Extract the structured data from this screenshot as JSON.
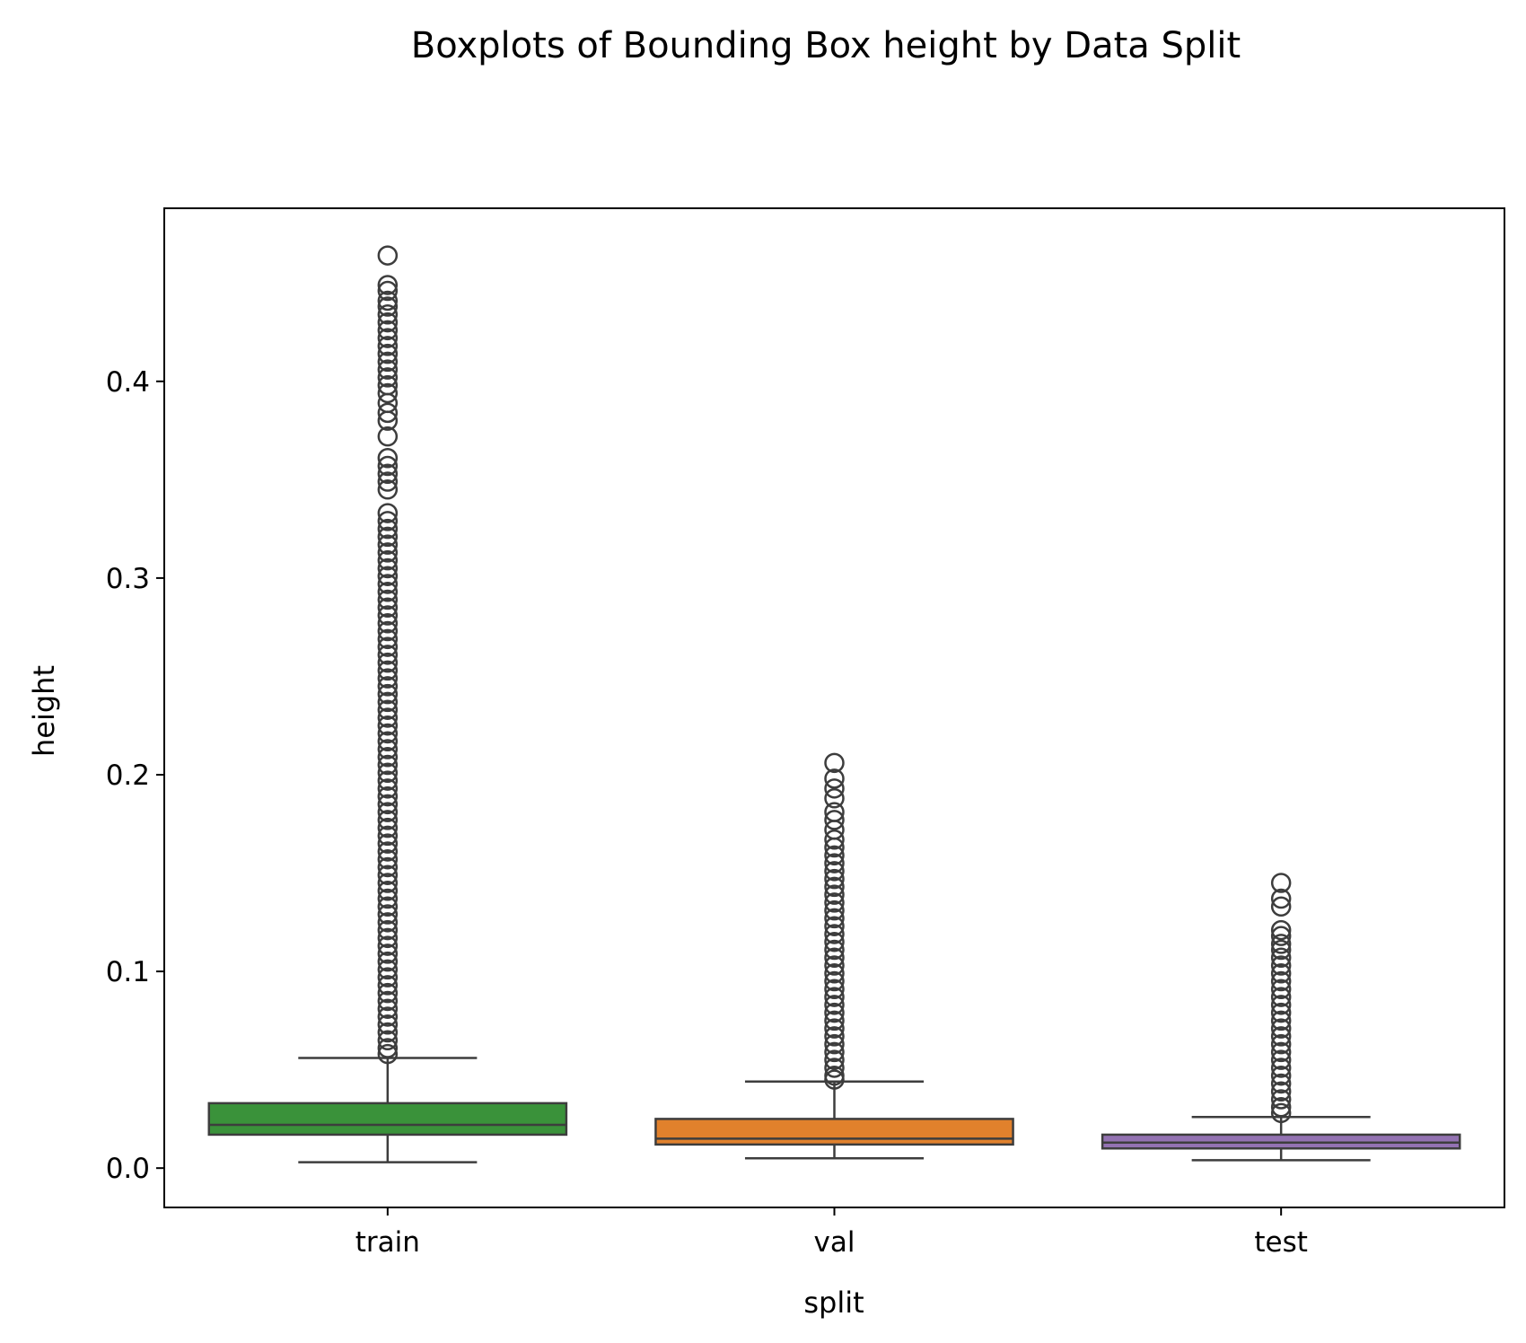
{
  "chart_data": {
    "type": "boxplot",
    "title": "Boxplots of Bounding Box height by Data Split",
    "xlabel": "split",
    "ylabel": "height",
    "categories": [
      "train",
      "val",
      "test"
    ],
    "ylim": [
      -0.02,
      0.488
    ],
    "yticks": [
      0.0,
      0.1,
      0.2,
      0.3,
      0.4
    ],
    "ytick_labels": [
      "0.0",
      "0.1",
      "0.2",
      "0.3",
      "0.4"
    ],
    "grid": false,
    "boxes": [
      {
        "name": "train",
        "color": "#3a923a",
        "whisker_low": 0.003,
        "q1": 0.017,
        "median": 0.022,
        "q3": 0.033,
        "whisker_high": 0.056,
        "outliers": [
          0.464,
          0.449,
          0.446,
          0.441,
          0.438,
          0.434,
          0.43,
          0.426,
          0.422,
          0.418,
          0.414,
          0.41,
          0.406,
          0.402,
          0.398,
          0.394,
          0.389,
          0.384,
          0.38,
          0.372,
          0.361,
          0.357,
          0.353,
          0.349,
          0.345,
          0.333,
          0.329,
          0.325,
          0.321,
          0.317,
          0.313,
          0.309,
          0.305,
          0.301,
          0.297,
          0.293,
          0.289,
          0.285,
          0.281,
          0.277,
          0.273,
          0.269,
          0.265,
          0.261,
          0.257,
          0.253,
          0.249,
          0.245,
          0.241,
          0.237,
          0.233,
          0.229,
          0.225,
          0.221,
          0.217,
          0.213,
          0.209,
          0.205,
          0.201,
          0.197,
          0.193,
          0.189,
          0.185,
          0.181,
          0.177,
          0.173,
          0.169,
          0.165,
          0.161,
          0.157,
          0.153,
          0.149,
          0.145,
          0.141,
          0.137,
          0.133,
          0.129,
          0.125,
          0.121,
          0.117,
          0.113,
          0.109,
          0.105,
          0.101,
          0.097,
          0.093,
          0.089,
          0.085,
          0.081,
          0.077,
          0.073,
          0.069,
          0.065,
          0.061,
          0.058
        ]
      },
      {
        "name": "val",
        "color": "#e1812c",
        "whisker_low": 0.005,
        "q1": 0.012,
        "median": 0.015,
        "q3": 0.025,
        "whisker_high": 0.044,
        "outliers": [
          0.206,
          0.198,
          0.193,
          0.188,
          0.181,
          0.177,
          0.172,
          0.167,
          0.163,
          0.159,
          0.155,
          0.151,
          0.147,
          0.143,
          0.139,
          0.135,
          0.131,
          0.127,
          0.123,
          0.119,
          0.115,
          0.111,
          0.107,
          0.103,
          0.099,
          0.095,
          0.091,
          0.087,
          0.083,
          0.079,
          0.075,
          0.071,
          0.067,
          0.063,
          0.059,
          0.055,
          0.051,
          0.047,
          0.045
        ]
      },
      {
        "name": "test",
        "color": "#9372b2",
        "whisker_low": 0.004,
        "q1": 0.01,
        "median": 0.013,
        "q3": 0.017,
        "whisker_high": 0.026,
        "outliers": [
          0.145,
          0.137,
          0.133,
          0.121,
          0.118,
          0.114,
          0.111,
          0.107,
          0.103,
          0.099,
          0.095,
          0.091,
          0.087,
          0.083,
          0.079,
          0.075,
          0.071,
          0.067,
          0.063,
          0.059,
          0.055,
          0.051,
          0.047,
          0.043,
          0.039,
          0.035,
          0.031,
          0.028
        ]
      }
    ]
  }
}
